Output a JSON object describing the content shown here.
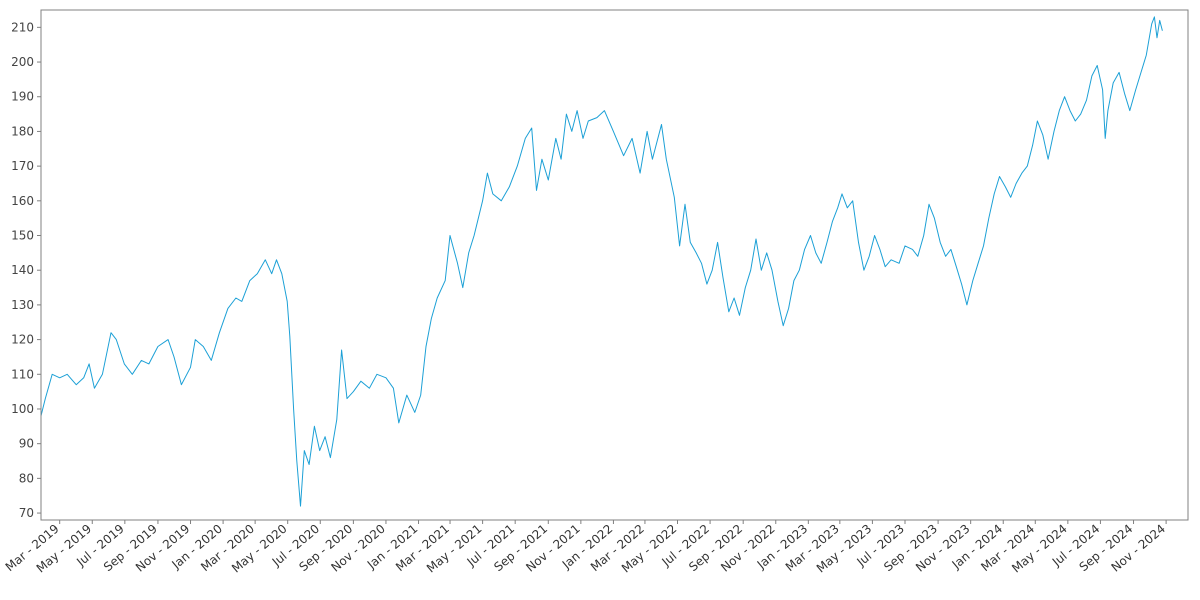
{
  "chart_data": {
    "type": "line",
    "title": "",
    "xlabel": "",
    "ylabel": "",
    "grid": false,
    "legend": "none",
    "ylim": [
      68,
      215
    ],
    "xlim": [
      "2019-01-25",
      "2024-12-12"
    ],
    "y_ticks": [
      70,
      80,
      90,
      100,
      110,
      120,
      130,
      140,
      150,
      160,
      170,
      180,
      190,
      200,
      210
    ],
    "x_ticks": [
      {
        "date": "2019-03-01",
        "label": "Mar - 2019"
      },
      {
        "date": "2019-05-01",
        "label": "May - 2019"
      },
      {
        "date": "2019-07-01",
        "label": "Jul - 2019"
      },
      {
        "date": "2019-09-01",
        "label": "Sep - 2019"
      },
      {
        "date": "2019-11-01",
        "label": "Nov - 2019"
      },
      {
        "date": "2020-01-01",
        "label": "Jan - 2020"
      },
      {
        "date": "2020-03-01",
        "label": "Mar - 2020"
      },
      {
        "date": "2020-05-01",
        "label": "May - 2020"
      },
      {
        "date": "2020-07-01",
        "label": "Jul - 2020"
      },
      {
        "date": "2020-09-01",
        "label": "Sep - 2020"
      },
      {
        "date": "2020-11-01",
        "label": "Nov - 2020"
      },
      {
        "date": "2021-01-01",
        "label": "Jan - 2021"
      },
      {
        "date": "2021-03-01",
        "label": "Mar - 2021"
      },
      {
        "date": "2021-05-01",
        "label": "May - 2021"
      },
      {
        "date": "2021-07-01",
        "label": "Jul - 2021"
      },
      {
        "date": "2021-09-01",
        "label": "Sep - 2021"
      },
      {
        "date": "2021-11-01",
        "label": "Nov - 2021"
      },
      {
        "date": "2022-01-01",
        "label": "Jan - 2022"
      },
      {
        "date": "2022-03-01",
        "label": "Mar - 2022"
      },
      {
        "date": "2022-05-01",
        "label": "May - 2022"
      },
      {
        "date": "2022-07-01",
        "label": "Jul - 2022"
      },
      {
        "date": "2022-09-01",
        "label": "Sep - 2022"
      },
      {
        "date": "2022-11-01",
        "label": "Nov - 2022"
      },
      {
        "date": "2023-01-01",
        "label": "Jan - 2023"
      },
      {
        "date": "2023-03-01",
        "label": "Mar - 2023"
      },
      {
        "date": "2023-05-01",
        "label": "May - 2023"
      },
      {
        "date": "2023-07-01",
        "label": "Jul - 2023"
      },
      {
        "date": "2023-09-01",
        "label": "Sep - 2023"
      },
      {
        "date": "2023-11-01",
        "label": "Nov - 2023"
      },
      {
        "date": "2024-01-01",
        "label": "Jan - 2024"
      },
      {
        "date": "2024-03-01",
        "label": "Mar - 2024"
      },
      {
        "date": "2024-05-01",
        "label": "May - 2024"
      },
      {
        "date": "2024-07-01",
        "label": "Jul - 2024"
      },
      {
        "date": "2024-09-01",
        "label": "Sep - 2024"
      },
      {
        "date": "2024-11-01",
        "label": "Nov - 2024"
      }
    ],
    "series": [
      {
        "color": "#1ca0d6",
        "points": [
          [
            "2019-01-25",
            98
          ],
          [
            "2019-02-02",
            103
          ],
          [
            "2019-02-15",
            110
          ],
          [
            "2019-03-01",
            109
          ],
          [
            "2019-03-15",
            110
          ],
          [
            "2019-04-01",
            107
          ],
          [
            "2019-04-15",
            109
          ],
          [
            "2019-04-25",
            113
          ],
          [
            "2019-05-05",
            106
          ],
          [
            "2019-05-20",
            110
          ],
          [
            "2019-06-05",
            122
          ],
          [
            "2019-06-15",
            120
          ],
          [
            "2019-06-30",
            113
          ],
          [
            "2019-07-15",
            110
          ],
          [
            "2019-08-01",
            114
          ],
          [
            "2019-08-15",
            113
          ],
          [
            "2019-09-01",
            118
          ],
          [
            "2019-09-20",
            120
          ],
          [
            "2019-10-01",
            115
          ],
          [
            "2019-10-15",
            107
          ],
          [
            "2019-11-01",
            112
          ],
          [
            "2019-11-10",
            120
          ],
          [
            "2019-11-25",
            118
          ],
          [
            "2019-12-10",
            114
          ],
          [
            "2019-12-25",
            122
          ],
          [
            "2020-01-10",
            129
          ],
          [
            "2020-01-25",
            132
          ],
          [
            "2020-02-05",
            131
          ],
          [
            "2020-02-20",
            137
          ],
          [
            "2020-03-05",
            139
          ],
          [
            "2020-03-20",
            143
          ],
          [
            "2020-04-01",
            139
          ],
          [
            "2020-04-10",
            143
          ],
          [
            "2020-04-20",
            139
          ],
          [
            "2020-04-30",
            131
          ],
          [
            "2020-05-05",
            121
          ],
          [
            "2020-05-12",
            100
          ],
          [
            "2020-05-18",
            85
          ],
          [
            "2020-05-25",
            72
          ],
          [
            "2020-06-01",
            88
          ],
          [
            "2020-06-10",
            84
          ],
          [
            "2020-06-20",
            95
          ],
          [
            "2020-06-30",
            88
          ],
          [
            "2020-07-10",
            92
          ],
          [
            "2020-07-20",
            86
          ],
          [
            "2020-08-01",
            97
          ],
          [
            "2020-08-10",
            117
          ],
          [
            "2020-08-20",
            103
          ],
          [
            "2020-09-01",
            105
          ],
          [
            "2020-09-15",
            108
          ],
          [
            "2020-10-01",
            106
          ],
          [
            "2020-10-15",
            110
          ],
          [
            "2020-11-01",
            109
          ],
          [
            "2020-11-15",
            106
          ],
          [
            "2020-11-25",
            96
          ],
          [
            "2020-12-10",
            104
          ],
          [
            "2020-12-25",
            99
          ],
          [
            "2021-01-05",
            104
          ],
          [
            "2021-01-15",
            118
          ],
          [
            "2021-01-25",
            126
          ],
          [
            "2021-02-05",
            132
          ],
          [
            "2021-02-20",
            137
          ],
          [
            "2021-03-01",
            150
          ],
          [
            "2021-03-15",
            142
          ],
          [
            "2021-03-25",
            135
          ],
          [
            "2021-04-05",
            145
          ],
          [
            "2021-04-15",
            150
          ],
          [
            "2021-05-01",
            160
          ],
          [
            "2021-05-10",
            168
          ],
          [
            "2021-05-20",
            162
          ],
          [
            "2021-06-05",
            160
          ],
          [
            "2021-06-20",
            164
          ],
          [
            "2021-07-05",
            170
          ],
          [
            "2021-07-20",
            178
          ],
          [
            "2021-08-01",
            181
          ],
          [
            "2021-08-10",
            163
          ],
          [
            "2021-08-20",
            172
          ],
          [
            "2021-09-01",
            166
          ],
          [
            "2021-09-15",
            178
          ],
          [
            "2021-09-25",
            172
          ],
          [
            "2021-10-05",
            185
          ],
          [
            "2021-10-15",
            180
          ],
          [
            "2021-10-25",
            186
          ],
          [
            "2021-11-05",
            178
          ],
          [
            "2021-11-15",
            183
          ],
          [
            "2021-12-01",
            184
          ],
          [
            "2021-12-15",
            186
          ],
          [
            "2022-01-01",
            180
          ],
          [
            "2022-01-20",
            173
          ],
          [
            "2022-02-05",
            178
          ],
          [
            "2022-02-20",
            168
          ],
          [
            "2022-03-05",
            180
          ],
          [
            "2022-03-15",
            172
          ],
          [
            "2022-04-01",
            182
          ],
          [
            "2022-04-10",
            172
          ],
          [
            "2022-04-25",
            161
          ],
          [
            "2022-05-05",
            147
          ],
          [
            "2022-05-15",
            159
          ],
          [
            "2022-05-25",
            148
          ],
          [
            "2022-06-05",
            145
          ],
          [
            "2022-06-15",
            142
          ],
          [
            "2022-06-25",
            136
          ],
          [
            "2022-07-05",
            140
          ],
          [
            "2022-07-15",
            148
          ],
          [
            "2022-07-25",
            138
          ],
          [
            "2022-08-05",
            128
          ],
          [
            "2022-08-15",
            132
          ],
          [
            "2022-08-25",
            127
          ],
          [
            "2022-09-05",
            135
          ],
          [
            "2022-09-15",
            140
          ],
          [
            "2022-09-25",
            149
          ],
          [
            "2022-10-05",
            140
          ],
          [
            "2022-10-15",
            145
          ],
          [
            "2022-10-25",
            140
          ],
          [
            "2022-11-05",
            131
          ],
          [
            "2022-11-15",
            124
          ],
          [
            "2022-11-25",
            129
          ],
          [
            "2022-12-05",
            137
          ],
          [
            "2022-12-15",
            140
          ],
          [
            "2022-12-25",
            146
          ],
          [
            "2023-01-05",
            150
          ],
          [
            "2023-01-15",
            145
          ],
          [
            "2023-01-25",
            142
          ],
          [
            "2023-02-05",
            148
          ],
          [
            "2023-02-15",
            154
          ],
          [
            "2023-02-25",
            158
          ],
          [
            "2023-03-05",
            162
          ],
          [
            "2023-03-15",
            158
          ],
          [
            "2023-03-25",
            160
          ],
          [
            "2023-04-05",
            148
          ],
          [
            "2023-04-15",
            140
          ],
          [
            "2023-04-25",
            144
          ],
          [
            "2023-05-05",
            150
          ],
          [
            "2023-05-15",
            146
          ],
          [
            "2023-05-25",
            141
          ],
          [
            "2023-06-05",
            143
          ],
          [
            "2023-06-20",
            142
          ],
          [
            "2023-07-01",
            147
          ],
          [
            "2023-07-15",
            146
          ],
          [
            "2023-07-25",
            144
          ],
          [
            "2023-08-05",
            150
          ],
          [
            "2023-08-15",
            159
          ],
          [
            "2023-08-25",
            155
          ],
          [
            "2023-09-05",
            148
          ],
          [
            "2023-09-15",
            144
          ],
          [
            "2023-09-25",
            146
          ],
          [
            "2023-10-05",
            141
          ],
          [
            "2023-10-15",
            136
          ],
          [
            "2023-10-25",
            130
          ],
          [
            "2023-11-05",
            137
          ],
          [
            "2023-11-15",
            142
          ],
          [
            "2023-11-25",
            147
          ],
          [
            "2023-12-05",
            155
          ],
          [
            "2023-12-15",
            162
          ],
          [
            "2023-12-25",
            167
          ],
          [
            "2024-01-05",
            164
          ],
          [
            "2024-01-15",
            161
          ],
          [
            "2024-01-25",
            165
          ],
          [
            "2024-02-05",
            168
          ],
          [
            "2024-02-15",
            170
          ],
          [
            "2024-02-25",
            176
          ],
          [
            "2024-03-05",
            183
          ],
          [
            "2024-03-15",
            179
          ],
          [
            "2024-03-25",
            172
          ],
          [
            "2024-04-05",
            180
          ],
          [
            "2024-04-15",
            186
          ],
          [
            "2024-04-25",
            190
          ],
          [
            "2024-05-05",
            186
          ],
          [
            "2024-05-15",
            183
          ],
          [
            "2024-05-25",
            185
          ],
          [
            "2024-06-05",
            189
          ],
          [
            "2024-06-15",
            196
          ],
          [
            "2024-06-25",
            199
          ],
          [
            "2024-07-05",
            192
          ],
          [
            "2024-07-10",
            178
          ],
          [
            "2024-07-15",
            186
          ],
          [
            "2024-07-25",
            194
          ],
          [
            "2024-08-05",
            197
          ],
          [
            "2024-08-15",
            191
          ],
          [
            "2024-08-25",
            186
          ],
          [
            "2024-09-05",
            192
          ],
          [
            "2024-09-15",
            197
          ],
          [
            "2024-09-25",
            202
          ],
          [
            "2024-10-05",
            211
          ],
          [
            "2024-10-10",
            213
          ],
          [
            "2024-10-15",
            207
          ],
          [
            "2024-10-20",
            212
          ],
          [
            "2024-10-25",
            209
          ]
        ]
      }
    ]
  }
}
